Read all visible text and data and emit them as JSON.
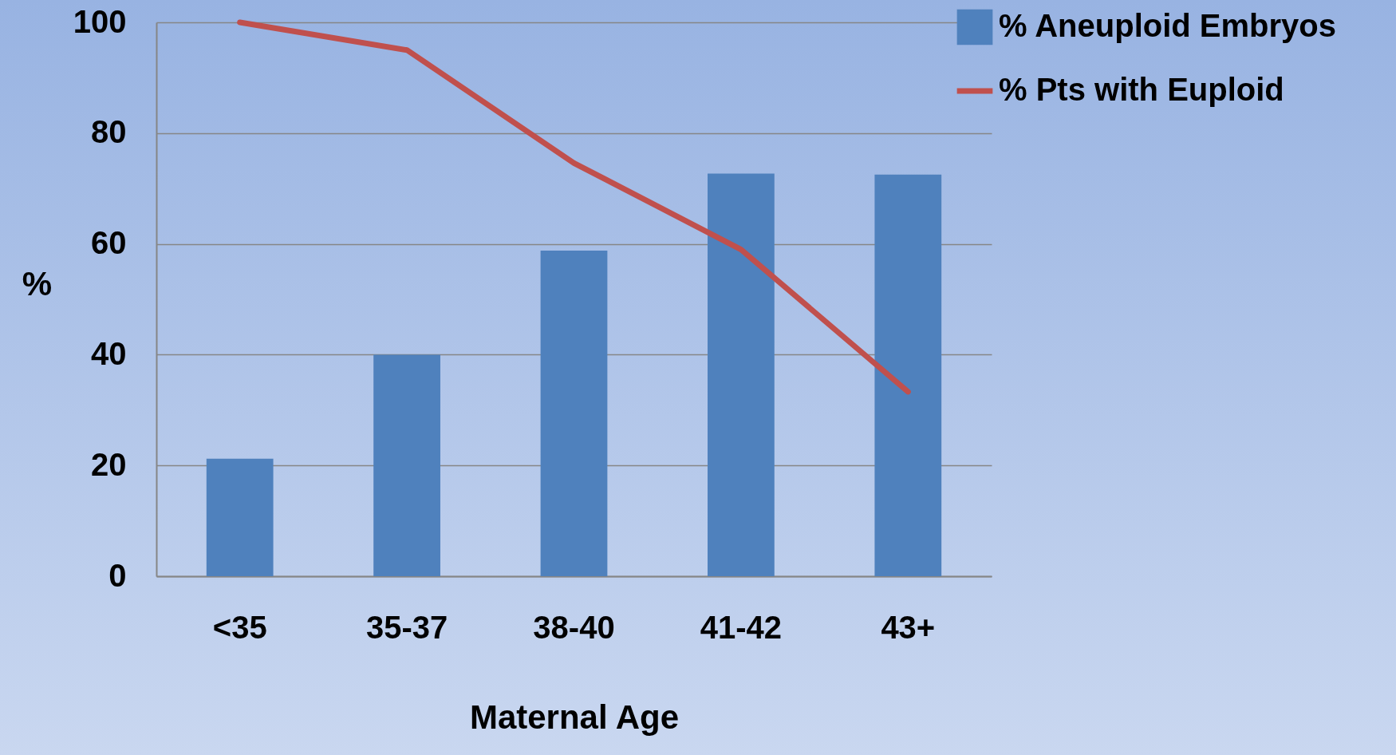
{
  "chart_data": {
    "type": "bar",
    "xlabel": "Maternal Age",
    "ylabel": "%",
    "categories": [
      "<35",
      "35-37",
      "38-40",
      "41-42",
      "43+"
    ],
    "series": [
      {
        "name": "% Aneuploid Embryos",
        "color": "#4f81bd",
        "values": [
          21.2,
          40,
          58.8,
          72.7,
          72.5
        ]
      },
      {
        "name": "% Pts with Euploid",
        "type": "line",
        "color": "#c0504d",
        "values": [
          100,
          95,
          74.6,
          59,
          33.3
        ]
      }
    ],
    "ylim": [
      0,
      100
    ],
    "yticks": [
      0,
      20,
      40,
      60,
      80,
      100
    ],
    "grid": "y",
    "legend": "top right",
    "marker": "none",
    "line_style": "solid"
  }
}
